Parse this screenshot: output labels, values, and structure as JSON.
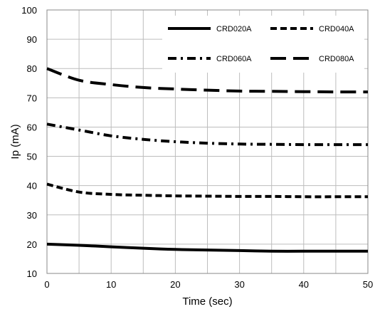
{
  "chart_data": {
    "type": "line",
    "title": "",
    "xlabel": "Time (sec)",
    "ylabel": "Ip  (mA)",
    "xlim": [
      0,
      50
    ],
    "ylim": [
      10,
      100
    ],
    "xticks": [
      0,
      10,
      20,
      30,
      40,
      50
    ],
    "yticks": [
      10,
      20,
      30,
      40,
      50,
      60,
      70,
      80,
      90,
      100
    ],
    "grid": true,
    "legend_position": "top-right",
    "x": [
      0,
      5,
      10,
      15,
      20,
      25,
      30,
      35,
      40,
      45,
      50
    ],
    "series": [
      {
        "name": "CRD020A",
        "style": "solid",
        "color": "#000000",
        "values": [
          20,
          19.6,
          19.1,
          18.6,
          18.2,
          18.0,
          17.8,
          17.6,
          17.6,
          17.6,
          17.6
        ]
      },
      {
        "name": "CRD040A",
        "style": "dash",
        "color": "#000000",
        "values": [
          40.5,
          37.8,
          37.0,
          36.7,
          36.5,
          36.4,
          36.3,
          36.3,
          36.2,
          36.2,
          36.2
        ]
      },
      {
        "name": "CRD060A",
        "style": "dashdot",
        "color": "#000000",
        "values": [
          61,
          59,
          57,
          55.8,
          55,
          54.5,
          54.2,
          54.1,
          54.0,
          54.0,
          54.0
        ]
      },
      {
        "name": "CRD080A",
        "style": "longdash",
        "color": "#000000",
        "values": [
          80,
          76,
          74.5,
          73.5,
          73,
          72.6,
          72.3,
          72.2,
          72.1,
          72.0,
          72.0
        ]
      }
    ]
  }
}
